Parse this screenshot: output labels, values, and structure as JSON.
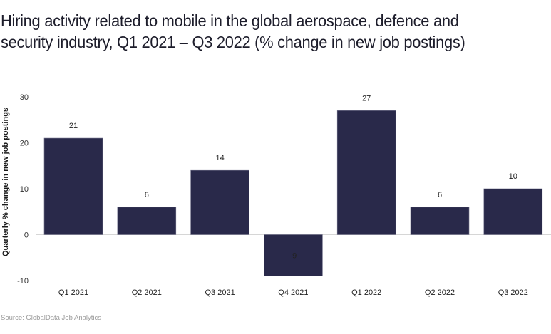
{
  "chart_data": {
    "type": "bar",
    "title": "Hiring activity related to mobile in the global aerospace, defence and security industry, Q1 2021 – Q3 2022 (% change in new job postings)",
    "xlabel": "",
    "ylabel": "Quarterly % change in new job postings",
    "categories": [
      "Q1 2021",
      "Q2 2021",
      "Q3 2021",
      "Q4 2021",
      "Q1 2022",
      "Q2 2022",
      "Q3 2022"
    ],
    "values": [
      21,
      6,
      14,
      -9,
      27,
      6,
      10
    ],
    "data_labels": [
      "21",
      "6",
      "14",
      "-9",
      "27",
      "6",
      "10"
    ],
    "ylim": [
      -10,
      30
    ],
    "yticks": [
      30,
      20,
      10,
      0,
      -10
    ],
    "grid": false,
    "legend": "none",
    "bar_color": "#29294a",
    "source": "Source: GlobalData Job Analytics"
  }
}
